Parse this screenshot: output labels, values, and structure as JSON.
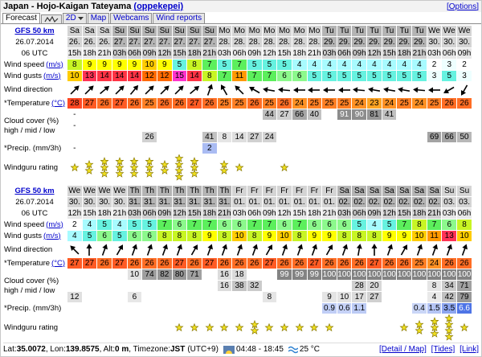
{
  "header": {
    "location": "Japan - Hojo-Kaigan Tateyama",
    "user": "(oppekepei)",
    "options": "[Options]"
  },
  "tabs": {
    "forecast": "Forecast",
    "two_d": "2D",
    "map": "Map",
    "webcams": "Webcams",
    "wind_reports": "Wind reports"
  },
  "labels": {
    "model": "GFS 50 km",
    "wind_speed": "Wind speed",
    "wind_speed_unit": "(m/s)",
    "wind_gusts": "Wind gusts",
    "wind_gusts_unit": "(m/s)",
    "wind_direction": "Wind direction",
    "temperature": "*Temperature",
    "temperature_unit": "(°C)",
    "cloud": "Cloud cover (%)",
    "cloud_levels": "high / mid / low",
    "precip": "*Precip. (mm/3h)",
    "rating": "Windguru rating"
  },
  "tables": [
    {
      "init_date": "26.07.2014",
      "init_time": "06 UTC",
      "days": [
        "Sa",
        "Sa",
        "Sa",
        "Su",
        "Su",
        "Su",
        "Su",
        "Su",
        "Su",
        "Su",
        "Mo",
        "Mo",
        "Mo",
        "Mo",
        "Mo",
        "Mo",
        "Mo",
        "Tu",
        "Tu",
        "Tu",
        "Tu",
        "Tu",
        "Tu",
        "Tu",
        "We",
        "We",
        "We"
      ],
      "dates": [
        "26.",
        "26.",
        "26.",
        "27.",
        "27.",
        "27.",
        "27.",
        "27.",
        "27.",
        "27.",
        "28.",
        "28.",
        "28.",
        "28.",
        "28.",
        "28.",
        "28.",
        "29.",
        "29.",
        "29.",
        "29.",
        "29.",
        "29.",
        "29.",
        "30.",
        "30.",
        "30."
      ],
      "hours": [
        "15h",
        "18h",
        "21h",
        "03h",
        "06h",
        "09h",
        "12h",
        "15h",
        "18h",
        "21h",
        "03h",
        "06h",
        "09h",
        "12h",
        "15h",
        "18h",
        "21h",
        "03h",
        "06h",
        "09h",
        "12h",
        "15h",
        "18h",
        "21h",
        "03h",
        "06h",
        "09h"
      ],
      "wind_speed": [
        8,
        9,
        9,
        9,
        9,
        10,
        9,
        5,
        8,
        7,
        5,
        7,
        5,
        5,
        5,
        4,
        4,
        4,
        4,
        4,
        4,
        4,
        4,
        4,
        2,
        3,
        2
      ],
      "wind_gusts": [
        10,
        13,
        14,
        14,
        14,
        12,
        12,
        15,
        14,
        8,
        7,
        11,
        7,
        7,
        6,
        6,
        5,
        5,
        5,
        5,
        5,
        5,
        5,
        5,
        3,
        5,
        3
      ],
      "wind_direction": [
        225,
        225,
        230,
        225,
        220,
        225,
        225,
        225,
        230,
        200,
        150,
        135,
        120,
        100,
        95,
        90,
        90,
        90,
        90,
        95,
        100,
        100,
        100,
        95,
        90,
        60,
        30
      ],
      "temperature": [
        28,
        27,
        26,
        27,
        26,
        25,
        26,
        26,
        27,
        26,
        25,
        25,
        26,
        25,
        26,
        24,
        25,
        25,
        25,
        24,
        23,
        24,
        25,
        24,
        25,
        26,
        26
      ],
      "cloud_high": [
        "-",
        null,
        null,
        null,
        null,
        null,
        null,
        null,
        null,
        null,
        null,
        null,
        null,
        44,
        27,
        66,
        40,
        null,
        91,
        90,
        81,
        41,
        null,
        null,
        null,
        null,
        null
      ],
      "cloud_mid": [
        "-",
        null,
        null,
        null,
        null,
        null,
        null,
        null,
        null,
        null,
        null,
        null,
        null,
        null,
        null,
        null,
        null,
        null,
        null,
        null,
        null,
        null,
        null,
        null,
        null,
        null,
        null
      ],
      "cloud_low": [
        null,
        null,
        null,
        null,
        null,
        26,
        null,
        null,
        null,
        41,
        8,
        14,
        27,
        24,
        null,
        null,
        null,
        null,
        null,
        null,
        null,
        null,
        null,
        null,
        69,
        66,
        50
      ],
      "precip": [
        "-",
        null,
        null,
        null,
        null,
        null,
        null,
        null,
        null,
        2,
        null,
        null,
        null,
        null,
        null,
        null,
        null,
        null,
        null,
        null,
        null,
        null,
        null,
        null,
        null,
        null,
        null
      ],
      "rating": [
        1,
        2,
        3,
        3,
        3,
        3,
        2,
        4,
        3,
        0,
        2,
        1,
        0,
        0,
        1,
        0,
        0,
        0,
        0,
        0,
        0,
        0,
        0,
        0,
        0,
        0,
        0
      ]
    },
    {
      "init_date": "26.07.2014",
      "init_time": "06 UTC",
      "days": [
        "We",
        "We",
        "We",
        "We",
        "Th",
        "Th",
        "Th",
        "Th",
        "Th",
        "Th",
        "Th",
        "Fr",
        "Fr",
        "Fr",
        "Fr",
        "Fr",
        "Fr",
        "Fr",
        "Sa",
        "Sa",
        "Sa",
        "Sa",
        "Sa",
        "Sa",
        "Sa",
        "Su",
        "Su"
      ],
      "dates": [
        "30.",
        "30.",
        "30.",
        "30.",
        "31.",
        "31.",
        "31.",
        "31.",
        "31.",
        "31.",
        "31.",
        "01.",
        "01.",
        "01.",
        "01.",
        "01.",
        "01.",
        "01.",
        "02.",
        "02.",
        "02.",
        "02.",
        "02.",
        "02.",
        "02.",
        "03.",
        "03."
      ],
      "hours": [
        "12h",
        "15h",
        "18h",
        "21h",
        "03h",
        "06h",
        "09h",
        "12h",
        "15h",
        "18h",
        "21h",
        "03h",
        "06h",
        "09h",
        "12h",
        "15h",
        "18h",
        "21h",
        "03h",
        "06h",
        "09h",
        "12h",
        "15h",
        "18h",
        "21h",
        "03h",
        "06h"
      ],
      "wind_speed": [
        2,
        4,
        5,
        4,
        5,
        5,
        7,
        6,
        7,
        7,
        6,
        6,
        7,
        7,
        6,
        7,
        6,
        6,
        6,
        5,
        4,
        5,
        7,
        8,
        7,
        6,
        8
      ],
      "wind_gusts": [
        4,
        5,
        6,
        5,
        6,
        6,
        8,
        8,
        8,
        9,
        8,
        10,
        8,
        9,
        10,
        8,
        9,
        9,
        8,
        8,
        8,
        9,
        9,
        10,
        11,
        13,
        10
      ],
      "wind_direction": [
        135,
        180,
        200,
        210,
        200,
        200,
        200,
        200,
        210,
        200,
        200,
        200,
        200,
        210,
        200,
        200,
        200,
        210,
        200,
        190,
        180,
        200,
        210,
        200,
        200,
        200,
        200
      ],
      "temperature": [
        27,
        27,
        26,
        27,
        26,
        26,
        26,
        27,
        26,
        27,
        26,
        26,
        26,
        27,
        26,
        26,
        27,
        26,
        26,
        26,
        27,
        26,
        26,
        25,
        24,
        26,
        26
      ],
      "cloud_high": [
        null,
        null,
        null,
        null,
        10,
        74,
        82,
        80,
        71,
        null,
        16,
        18,
        null,
        null,
        99,
        99,
        99,
        100,
        100,
        100,
        100,
        100,
        100,
        100,
        100,
        100,
        100
      ],
      "cloud_mid": [
        null,
        null,
        null,
        null,
        null,
        null,
        null,
        null,
        null,
        null,
        16,
        38,
        32,
        null,
        null,
        null,
        null,
        null,
        null,
        28,
        20,
        null,
        null,
        null,
        8,
        34,
        71
      ],
      "cloud_low": [
        12,
        null,
        null,
        null,
        6,
        null,
        null,
        null,
        null,
        null,
        null,
        null,
        null,
        8,
        null,
        null,
        null,
        9,
        10,
        17,
        27,
        null,
        null,
        null,
        4,
        42,
        79
      ],
      "precip": [
        null,
        null,
        null,
        null,
        null,
        null,
        null,
        null,
        null,
        null,
        null,
        null,
        null,
        null,
        null,
        null,
        null,
        0.9,
        0.6,
        1.1,
        null,
        null,
        null,
        0.4,
        1.5,
        3.5,
        6.6
      ],
      "rating": [
        0,
        0,
        0,
        0,
        0,
        0,
        0,
        1,
        1,
        1,
        1,
        1,
        2,
        1,
        1,
        1,
        1,
        1,
        0,
        0,
        0,
        0,
        1,
        2,
        3,
        4,
        1
      ]
    }
  ],
  "footer": {
    "lat_label": "Lat: ",
    "lat": "35.0072",
    "lon_label": ", Lon: ",
    "lon": "139.8575",
    "alt_label": ", Alt: ",
    "alt": "0 m",
    "tz_label": ", Timezone: ",
    "tz": "JST",
    "tz_offset": "(UTC+9)",
    "sun": "04:48 - 18:45",
    "water": "25 °C",
    "detail": "[Detail / Map]",
    "tides": "[Tides]",
    "link": "[Link]"
  }
}
